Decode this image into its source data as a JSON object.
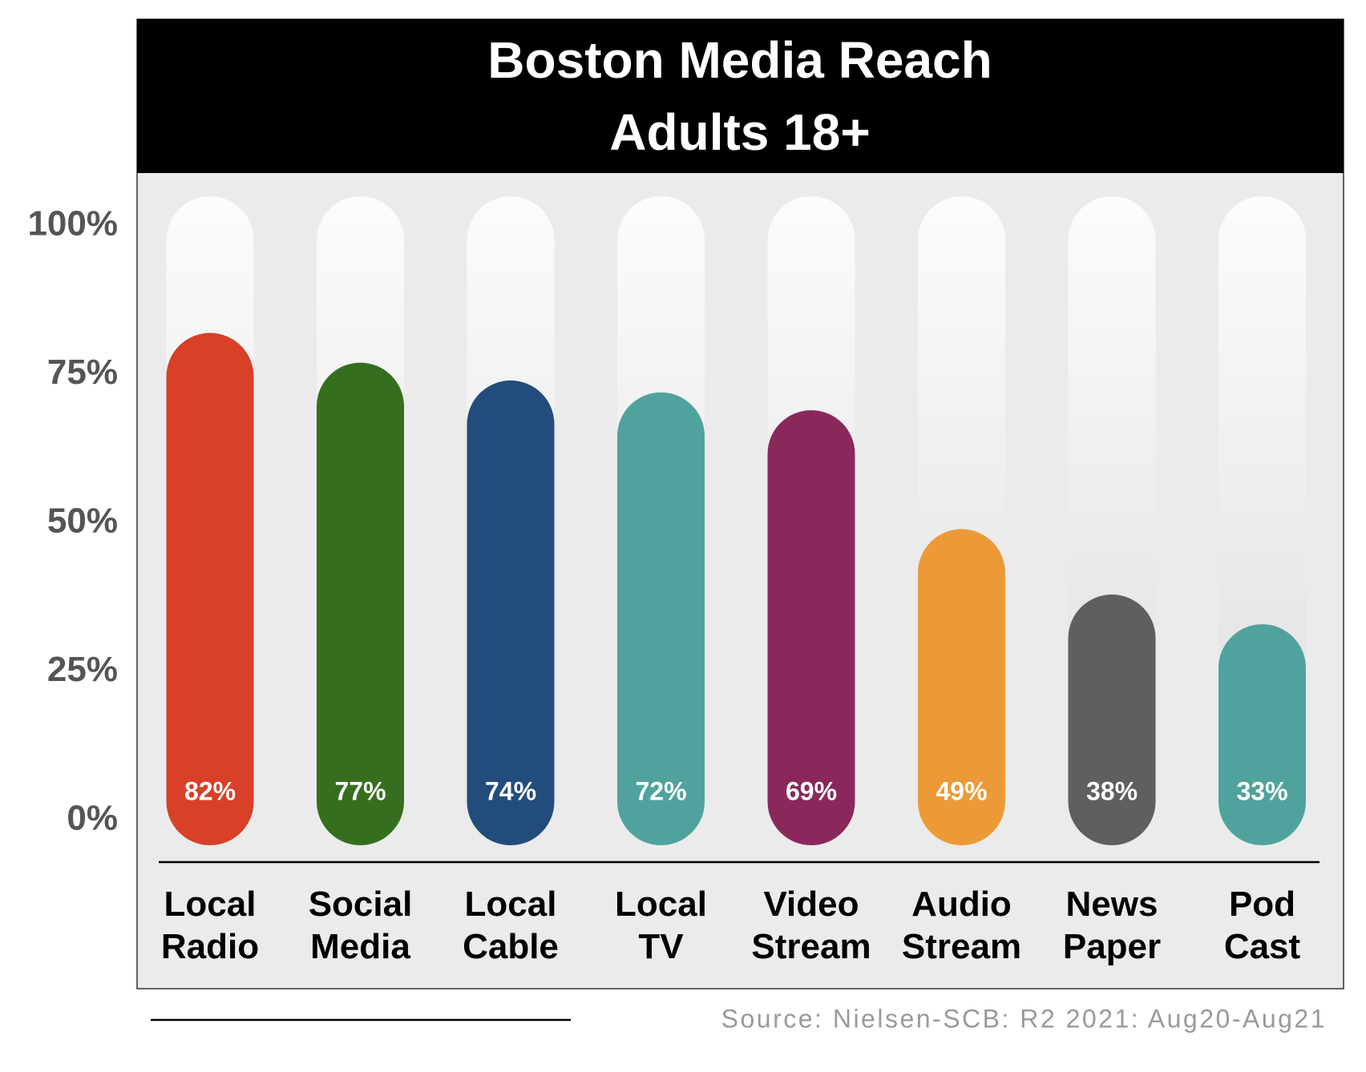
{
  "chart_data": {
    "type": "bar",
    "title": "Boston Media Reach",
    "subtitle": "Adults 18+",
    "categories": [
      "Local Radio",
      "Social Media",
      "Local Cable",
      "Local TV",
      "Video Stream",
      "Audio Stream",
      "News Paper",
      "Pod Cast"
    ],
    "series": [
      {
        "name": "Reach",
        "values": [
          82,
          77,
          74,
          72,
          69,
          49,
          38,
          33
        ],
        "value_labels": [
          "82%",
          "77%",
          "74%",
          "72%",
          "69%",
          "49%",
          "38%",
          "33%"
        ],
        "colors": [
          "#d84027",
          "#366e20",
          "#224c7c",
          "#50a39c",
          "#8a285b",
          "#ec9a38",
          "#5f5f5f",
          "#50a39c"
        ]
      }
    ],
    "ylim": [
      0,
      100
    ],
    "yticks": [
      {
        "value": 0,
        "label": "0%"
      },
      {
        "value": 25,
        "label": "25%"
      },
      {
        "value": 50,
        "label": "50%"
      },
      {
        "value": 75,
        "label": "75%"
      },
      {
        "value": 100,
        "label": "100%"
      }
    ],
    "grid": false,
    "source": "Source: Nielsen-SCB: R2 2021: Aug20-Aug21"
  }
}
